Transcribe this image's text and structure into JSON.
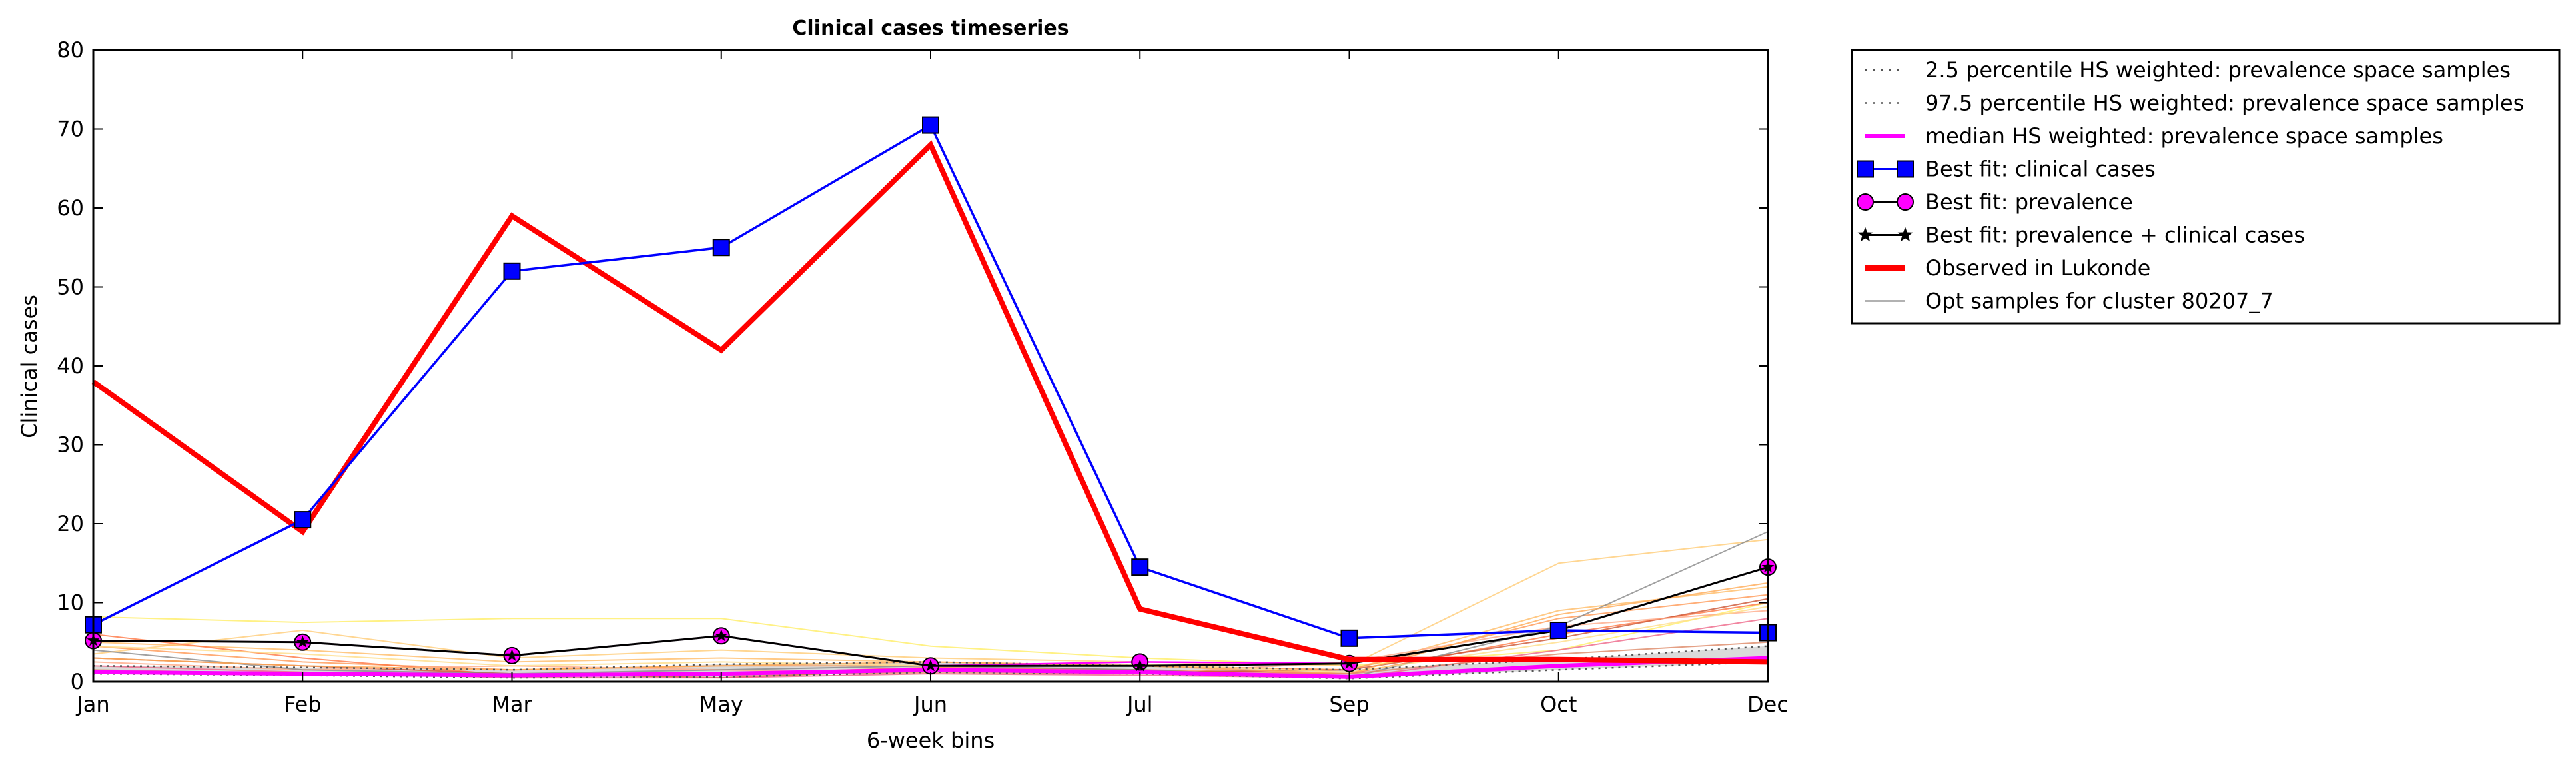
{
  "chart_data": {
    "type": "line",
    "title": "Clinical cases timeseries",
    "xlabel": "6-week bins",
    "ylabel": "Clinical cases",
    "categories": [
      "Jan",
      "Feb",
      "Mar",
      "May",
      "Jun",
      "Jul",
      "Sep",
      "Oct",
      "Dec"
    ],
    "ylim": [
      0,
      80
    ],
    "yticks": [
      0,
      10,
      20,
      30,
      40,
      50,
      60,
      70,
      80
    ],
    "grid": false,
    "legend_position": "outside-top-right",
    "legend": [
      {
        "label": "2.5 percentile HS weighted: prevalence space samples",
        "style": "dotted",
        "color": "#555555"
      },
      {
        "label": "97.5 percentile HS weighted: prevalence space samples",
        "style": "dotted",
        "color": "#555555"
      },
      {
        "label": "median HS weighted: prevalence space samples",
        "style": "solid",
        "color": "#ff00ff"
      },
      {
        "label": "Best fit: clinical cases",
        "style": "square-marker",
        "color": "#0000ff"
      },
      {
        "label": "Best fit: prevalence",
        "style": "circle-marker",
        "color": "#ff00ff"
      },
      {
        "label": "Best fit: prevalence + clinical cases",
        "style": "star-marker",
        "color": "#000000"
      },
      {
        "label": "Observed in Lukonde",
        "style": "thick",
        "color": "#ff0000"
      },
      {
        "label": "Opt samples for cluster 80207_7",
        "style": "thin",
        "color": "#999999"
      }
    ],
    "series": [
      {
        "name": "Observed in Lukonde",
        "color": "#ff0000",
        "values": [
          38,
          19,
          59,
          42,
          68,
          9.2,
          2.8,
          2.8,
          2.5
        ]
      },
      {
        "name": "Best fit: clinical cases",
        "color": "#0000ff",
        "values": [
          7.2,
          20.5,
          52,
          55,
          70.5,
          14.5,
          5.5,
          6.5,
          6.2
        ]
      },
      {
        "name": "Best fit: prevalence",
        "color": "#ff00ff",
        "values": [
          5.2,
          5.0,
          3.3,
          5.8,
          2.0,
          2.5,
          2.3,
          6.5,
          14.5
        ]
      },
      {
        "name": "Best fit: prevalence + clinical cases",
        "color": "#000000",
        "values": [
          5.2,
          5.0,
          3.3,
          5.8,
          2.0,
          2.0,
          2.3,
          6.5,
          14.5
        ]
      },
      {
        "name": "median HS weighted: prevalence space samples",
        "color": "#ff00ff",
        "values": [
          1.2,
          1.0,
          0.8,
          1.0,
          1.5,
          1.2,
          0.6,
          2.0,
          3.0
        ]
      },
      {
        "name": "2.5 percentile HS weighted: prevalence space samples",
        "color": "#555555",
        "values": [
          1.0,
          0.8,
          0.5,
          0.6,
          1.2,
          1.0,
          0.4,
          1.5,
          2.5
        ]
      },
      {
        "name": "97.5 percentile HS weighted: prevalence space samples",
        "color": "#555555",
        "values": [
          2.0,
          1.8,
          1.5,
          2.2,
          2.5,
          2.0,
          1.5,
          2.8,
          4.5
        ]
      }
    ],
    "sample_series": [
      {
        "color": "#ffee66",
        "values": [
          8.2,
          7.5,
          8.0,
          8.0,
          4.5,
          3.0,
          2.0,
          4.0,
          10.0
        ]
      },
      {
        "color": "#ffcc77",
        "values": [
          3.5,
          6.5,
          3.0,
          4.0,
          3.0,
          2.5,
          2.0,
          15.0,
          18.0
        ]
      },
      {
        "color": "#ffbb66",
        "values": [
          5.0,
          4.0,
          2.5,
          3.0,
          2.5,
          2.0,
          1.5,
          9.0,
          12.0
        ]
      },
      {
        "color": "#ff9955",
        "values": [
          4.5,
          2.5,
          1.5,
          2.0,
          2.0,
          2.0,
          1.5,
          8.0,
          11.0
        ]
      },
      {
        "color": "#ff7744",
        "values": [
          6.0,
          3.0,
          0.8,
          1.0,
          1.8,
          1.5,
          1.0,
          6.0,
          10.0
        ]
      },
      {
        "color": "#cc5533",
        "values": [
          3.0,
          2.0,
          1.0,
          0.5,
          1.5,
          1.2,
          1.5,
          5.5,
          10.5
        ]
      },
      {
        "color": "#ffaa88",
        "values": [
          2.5,
          1.5,
          2.0,
          1.5,
          1.0,
          1.0,
          2.5,
          7.0,
          9.0
        ]
      },
      {
        "color": "#ee6688",
        "values": [
          2.0,
          1.2,
          0.5,
          0.5,
          1.0,
          0.8,
          0.5,
          4.0,
          8.0
        ]
      },
      {
        "color": "#888888",
        "values": [
          4.0,
          1.5,
          1.0,
          1.5,
          2.0,
          1.5,
          0.5,
          7.0,
          19.0
        ]
      },
      {
        "color": "#ffdd88",
        "values": [
          4.5,
          3.5,
          2.0,
          2.5,
          2.0,
          2.2,
          1.2,
          5.0,
          9.5
        ]
      },
      {
        "color": "#ffaa55",
        "values": [
          3.0,
          2.0,
          1.5,
          2.0,
          2.5,
          2.0,
          1.0,
          8.5,
          12.5
        ]
      },
      {
        "color": "#dd8866",
        "values": [
          1.5,
          1.0,
          0.7,
          0.8,
          1.2,
          1.0,
          1.0,
          3.5,
          5.0
        ]
      }
    ]
  }
}
